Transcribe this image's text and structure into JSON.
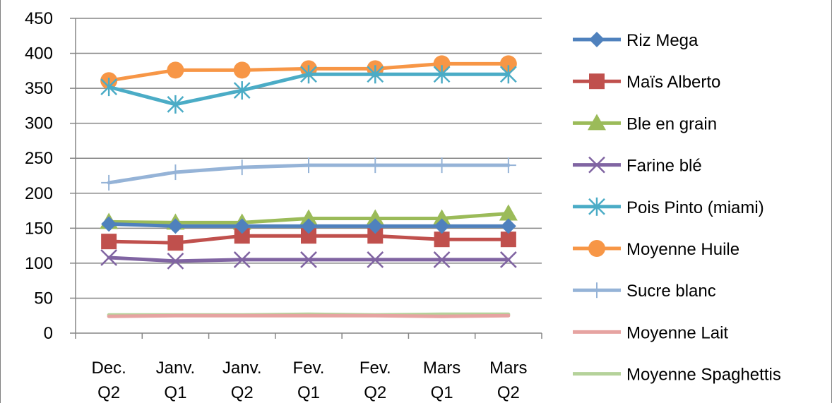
{
  "chart_data": {
    "type": "line",
    "title": "",
    "xlabel": "",
    "ylabel": "",
    "categories": [
      [
        "Dec.",
        "Q2"
      ],
      [
        "Janv.",
        "Q1"
      ],
      [
        "Janv.",
        "Q2"
      ],
      [
        "Fev.",
        "Q1"
      ],
      [
        "Fev.",
        "Q2"
      ],
      [
        "Mars",
        "Q1"
      ],
      [
        "Mars",
        "Q2"
      ]
    ],
    "ylim": [
      0,
      450
    ],
    "yticks": [
      0,
      50,
      100,
      150,
      200,
      250,
      300,
      350,
      400,
      450
    ],
    "grid": "horizontal",
    "legend_position": "right",
    "series": [
      {
        "name": "Riz Mega",
        "values": [
          156,
          153,
          153,
          153,
          153,
          153,
          153
        ],
        "color": "#4f81bd",
        "marker": "diamond"
      },
      {
        "name": "Maïs Alberto",
        "values": [
          131,
          129,
          139,
          139,
          139,
          134,
          134
        ],
        "color": "#c0504d",
        "marker": "square"
      },
      {
        "name": "Ble en grain",
        "values": [
          159,
          158,
          158,
          164,
          164,
          164,
          171
        ],
        "color": "#9bbb59",
        "marker": "triangle"
      },
      {
        "name": "Farine blé",
        "values": [
          108,
          103,
          105,
          105,
          105,
          105,
          105
        ],
        "color": "#8064a2",
        "marker": "x"
      },
      {
        "name": "Pois Pinto (miami)",
        "values": [
          352,
          327,
          347,
          370,
          370,
          370,
          370
        ],
        "color": "#4bacc6",
        "marker": "star"
      },
      {
        "name": "Moyenne Huile",
        "values": [
          361,
          376,
          376,
          378,
          378,
          385,
          385
        ],
        "color": "#f79646",
        "marker": "circle"
      },
      {
        "name": "Sucre blanc",
        "values": [
          215,
          230,
          237,
          240,
          240,
          240,
          240
        ],
        "color": "#95b3d7",
        "marker": "plus"
      },
      {
        "name": "Moyenne Lait",
        "values": [
          24,
          25,
          25,
          25,
          25,
          24,
          25
        ],
        "color": "#e6a3a1",
        "marker": "none"
      },
      {
        "name": "Moyenne Spaghettis",
        "values": [
          26,
          26,
          26,
          27,
          26,
          27,
          27
        ],
        "color": "#b5d29a",
        "marker": "none"
      }
    ]
  }
}
